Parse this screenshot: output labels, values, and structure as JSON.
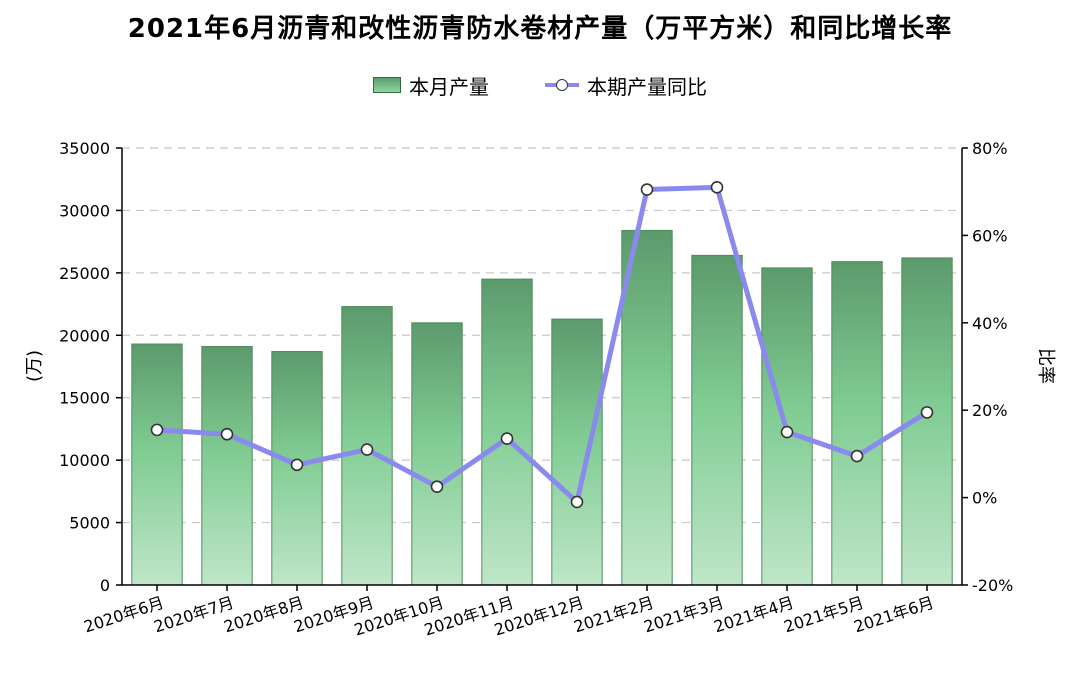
{
  "chart_data": {
    "type": "bar",
    "title": "2021年6月沥青和改性沥青防水卷材产量（万平方米）和同比增长率",
    "categories": [
      "2020年6月",
      "2020年7月",
      "2020年8月",
      "2020年9月",
      "2020年10月",
      "2020年11月",
      "2020年12月",
      "2021年2月",
      "2021年3月",
      "2021年4月",
      "2021年5月",
      "2021年6月"
    ],
    "series": [
      {
        "name": "本月产量",
        "type": "bar",
        "axis": "left",
        "values": [
          19300,
          19100,
          18700,
          22300,
          21000,
          24500,
          21300,
          28400,
          26400,
          25400,
          25900,
          26200
        ]
      },
      {
        "name": "本期产量同比",
        "type": "line",
        "axis": "right",
        "values": [
          15.5,
          14.5,
          7.5,
          11.0,
          2.5,
          13.5,
          -1.0,
          70.5,
          71.0,
          15.0,
          9.5,
          19.5
        ]
      }
    ],
    "ylabel": "(万)",
    "y2label": "比率",
    "ylim": [
      0,
      35000
    ],
    "y2lim": [
      -20,
      80
    ],
    "yticks": [
      0,
      5000,
      10000,
      15000,
      20000,
      25000,
      30000,
      35000
    ],
    "y2ticks": [
      -20,
      0,
      20,
      40,
      60,
      80
    ],
    "y2_suffix": "%",
    "grid": true,
    "legend_position": "top-center",
    "colors": {
      "bar_top": "#5c9a6c",
      "bar_bottom": "#bfe6c8",
      "bar_mid": "#80cc93",
      "line": "#8a8aee",
      "grid": "#c8c8c8"
    }
  }
}
